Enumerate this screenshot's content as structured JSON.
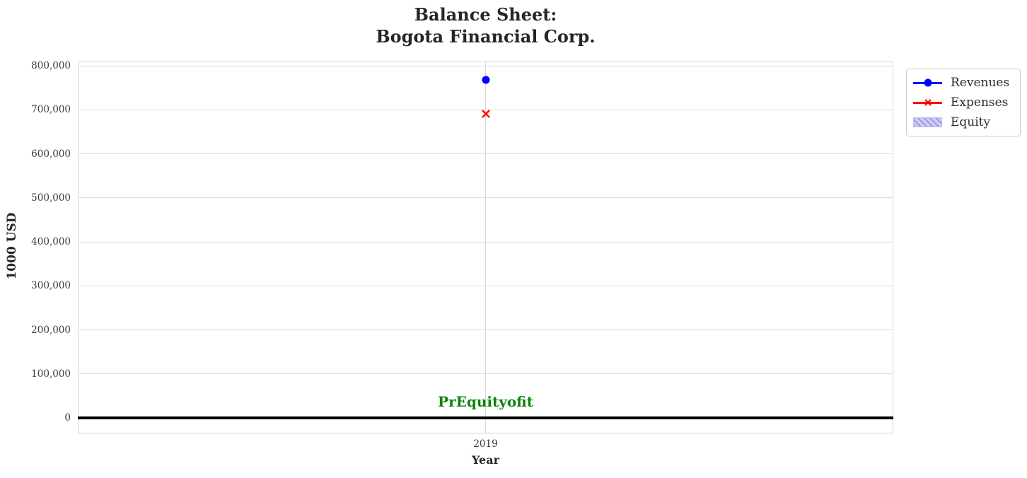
{
  "chart_data": {
    "type": "scatter",
    "title": "Balance Sheet:\nBogota Financial Corp.",
    "title_lines": [
      "Balance Sheet:",
      "Bogota Financial Corp."
    ],
    "xlabel": "Year",
    "ylabel": "1000 USD",
    "x_ticks": [
      {
        "value": 2019,
        "label": "2019"
      }
    ],
    "y_ticks": [
      {
        "value": 0,
        "label": "0"
      },
      {
        "value": 100000,
        "label": "100,000"
      },
      {
        "value": 200000,
        "label": "200,000"
      },
      {
        "value": 300000,
        "label": "300,000"
      },
      {
        "value": 400000,
        "label": "400,000"
      },
      {
        "value": 500000,
        "label": "500,000"
      },
      {
        "value": 600000,
        "label": "600,000"
      },
      {
        "value": 700000,
        "label": "700,000"
      },
      {
        "value": 800000,
        "label": "800,000"
      }
    ],
    "ylim": [
      -35000,
      810000
    ],
    "grid": true,
    "zero_line": {
      "value": 0,
      "color": "#000000"
    },
    "series": [
      {
        "name": "Revenues",
        "marker": "circle",
        "color": "#0000ff",
        "x": [
          2019
        ],
        "values": [
          768000
        ]
      },
      {
        "name": "Expenses",
        "marker": "x",
        "color": "#ff0000",
        "x": [
          2019
        ],
        "values": [
          691000
        ]
      },
      {
        "name": "Equity",
        "marker": "patch",
        "color": "#9595e8",
        "fill": "#ccccf2",
        "edge": "#b9b9ef",
        "hatch": "////",
        "x": [],
        "values": []
      }
    ],
    "annotation": {
      "text": "PrEquityofit",
      "color": "#0a830a"
    },
    "legend": {
      "position": "outside upper right",
      "entries": [
        "Revenues",
        "Expenses",
        "Equity"
      ]
    }
  }
}
